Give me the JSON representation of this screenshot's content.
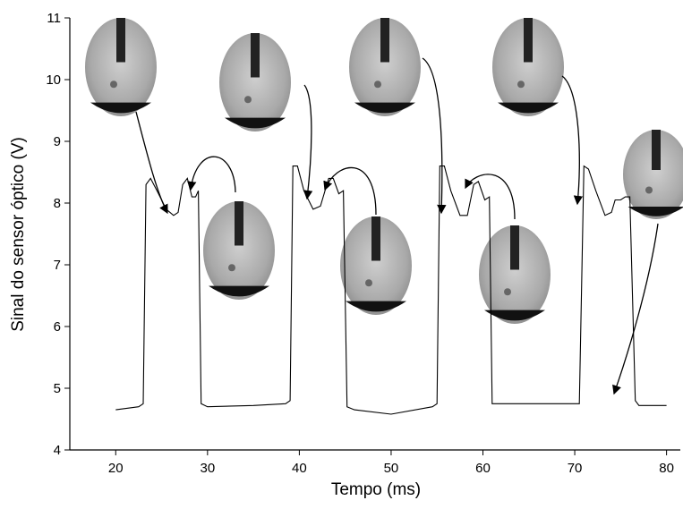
{
  "chart_data": {
    "type": "line",
    "x_label": "Tempo (ms)",
    "y_label": "Sinal do sensor óptico (V)",
    "xlim": [
      15,
      81.5
    ],
    "xticks": [
      20,
      30,
      40,
      50,
      60,
      70,
      80
    ],
    "ylim": [
      4,
      11
    ],
    "yticks": [
      4,
      5,
      6,
      7,
      8,
      9,
      10,
      11
    ],
    "color": "#000000",
    "x": [
      20,
      22.5,
      23,
      23.3,
      23.8,
      24.5,
      25.5,
      26.3,
      26.8,
      27.3,
      27.8,
      28.3,
      28.7,
      29,
      29.3,
      30,
      35,
      38.5,
      39,
      39.3,
      39.8,
      40.5,
      41.5,
      42.3,
      43.2,
      43.7,
      44.3,
      44.8,
      45.2,
      46,
      50,
      54.5,
      55,
      55.3,
      55.8,
      56.5,
      57.5,
      58.3,
      59,
      59.5,
      60.2,
      60.7,
      61,
      62,
      70.5,
      71,
      71.5,
      72.3,
      73.3,
      74,
      74.4,
      75,
      75.5,
      76,
      76.6,
      77,
      80
    ],
    "values": [
      4.65,
      4.7,
      4.75,
      8.3,
      8.4,
      8.2,
      7.9,
      7.8,
      7.85,
      8.3,
      8.4,
      8.1,
      8.1,
      8.2,
      4.75,
      4.7,
      4.72,
      4.75,
      4.8,
      8.6,
      8.6,
      8.2,
      7.9,
      7.95,
      8.4,
      8.4,
      8.15,
      8.2,
      4.7,
      4.65,
      4.58,
      4.7,
      4.75,
      8.6,
      8.6,
      8.2,
      7.8,
      7.8,
      8.3,
      8.35,
      8.05,
      8.1,
      4.75,
      4.75,
      4.75,
      8.6,
      8.55,
      8.2,
      7.8,
      7.85,
      8.05,
      8.05,
      8.1,
      8.1,
      4.8,
      4.72,
      4.72
    ]
  }
}
